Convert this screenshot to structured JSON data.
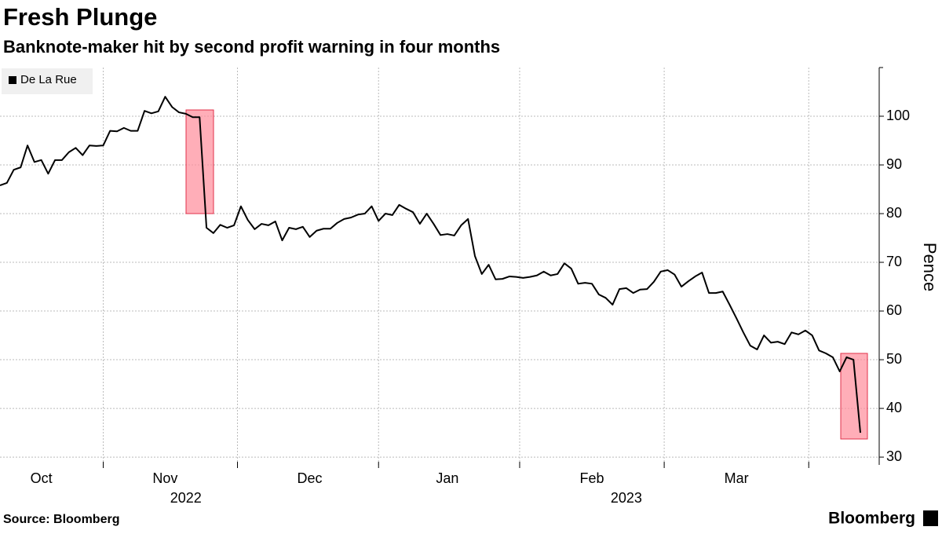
{
  "chart_data": {
    "type": "line",
    "title": "Fresh Plunge",
    "subtitle": "Banknote-maker hit by second profit warning in four months",
    "y_label": "Pence",
    "source": "Source: Bloomberg",
    "brand": "Bloomberg",
    "categories": [
      null,
      null,
      null,
      null,
      null,
      null,
      "Oct",
      null,
      null,
      null,
      null,
      null,
      null,
      null,
      null,
      null,
      null,
      null,
      null,
      null,
      null,
      null,
      null,
      null,
      "Nov",
      null,
      null,
      null,
      null,
      null,
      null,
      null,
      null,
      null,
      null,
      null,
      null,
      null,
      null,
      null,
      null,
      null,
      null,
      null,
      null,
      "Dec",
      null,
      null,
      null,
      null,
      null,
      null,
      null,
      null,
      null,
      null,
      null,
      null,
      null,
      null,
      null,
      null,
      null,
      null,
      null,
      "Jan",
      null,
      null,
      null,
      null,
      null,
      null,
      null,
      null,
      null,
      null,
      null,
      null,
      null,
      null,
      null,
      null,
      null,
      null,
      null,
      null,
      "Feb",
      null,
      null,
      null,
      null,
      null,
      null,
      null,
      null,
      null,
      null,
      null,
      null,
      null,
      null,
      null,
      null,
      null,
      null,
      null,
      null,
      "Mar",
      null,
      null,
      null,
      null,
      null,
      null,
      null,
      null,
      null,
      null,
      null,
      null,
      null,
      null,
      null,
      null,
      null,
      null
    ],
    "year_labels": [
      null,
      null,
      null,
      null,
      null,
      null,
      null,
      null,
      null,
      null,
      null,
      null,
      null,
      null,
      null,
      null,
      null,
      null,
      null,
      null,
      null,
      null,
      null,
      null,
      null,
      null,
      null,
      "2022",
      null,
      null,
      null,
      null,
      null,
      null,
      null,
      null,
      null,
      null,
      null,
      null,
      null,
      null,
      null,
      null,
      null,
      null,
      null,
      null,
      null,
      null,
      null,
      null,
      null,
      null,
      null,
      null,
      null,
      null,
      null,
      null,
      null,
      null,
      null,
      null,
      null,
      null,
      null,
      null,
      null,
      null,
      null,
      null,
      null,
      null,
      null,
      null,
      null,
      null,
      null,
      null,
      null,
      null,
      null,
      null,
      null,
      null,
      null,
      null,
      null,
      null,
      null,
      "2023",
      null,
      null,
      null,
      null,
      null,
      null,
      null,
      null,
      null,
      null,
      null,
      null,
      null,
      null,
      null,
      null,
      null,
      null,
      null,
      null,
      null,
      null,
      null,
      null,
      null,
      null,
      null,
      null,
      null,
      null,
      null,
      null,
      null,
      null,
      null,
      null,
      null,
      null,
      null
    ],
    "series": [
      {
        "name": "De La Rue",
        "color": "#000000",
        "values": [
          85.8,
          86.3,
          89,
          89.5,
          94,
          90.6,
          91,
          88.2,
          91,
          91,
          92.6,
          93.5,
          92,
          94,
          93.9,
          94,
          97,
          96.9,
          97.6,
          97,
          97,
          101.1,
          100.6,
          101,
          104,
          101.9,
          100.8,
          100.5,
          99.8,
          99.8,
          77.1,
          76,
          77.7,
          77.1,
          77.6,
          81.5,
          78.7,
          76.8,
          77.9,
          77.6,
          78.4,
          74.5,
          77.1,
          76.8,
          77.3,
          75.2,
          76.5,
          76.9,
          76.9,
          78.1,
          78.9,
          79.2,
          79.8,
          80,
          81.5,
          78.5,
          80,
          79.7,
          81.8,
          81,
          80.3,
          77.9,
          80,
          77.9,
          75.6,
          75.8,
          75.5,
          77.6,
          78.9,
          71.3,
          67.6,
          69.5,
          66.5,
          66.6,
          67.1,
          67,
          66.8,
          67,
          67.3,
          68.1,
          67.3,
          67.6,
          69.8,
          68.7,
          65.6,
          65.8,
          65.6,
          63.4,
          62.7,
          61.3,
          64.5,
          64.7,
          63.7,
          64.4,
          64.5,
          66,
          68.1,
          68.4,
          67.5,
          65,
          66.1,
          67.1,
          67.9,
          63.7,
          63.7,
          64,
          61.3,
          58.5,
          55.6,
          52.9,
          52.1,
          55,
          53.5,
          53.7,
          53.2,
          55.6,
          55.2,
          56,
          55,
          51.9,
          51.3,
          50.5,
          47.6,
          50.5,
          50,
          35
        ]
      }
    ],
    "ylim": [
      28.4,
      110
    ],
    "yticks": [
      30,
      40,
      50,
      60,
      70,
      80,
      90,
      100
    ],
    "grid": true
  }
}
